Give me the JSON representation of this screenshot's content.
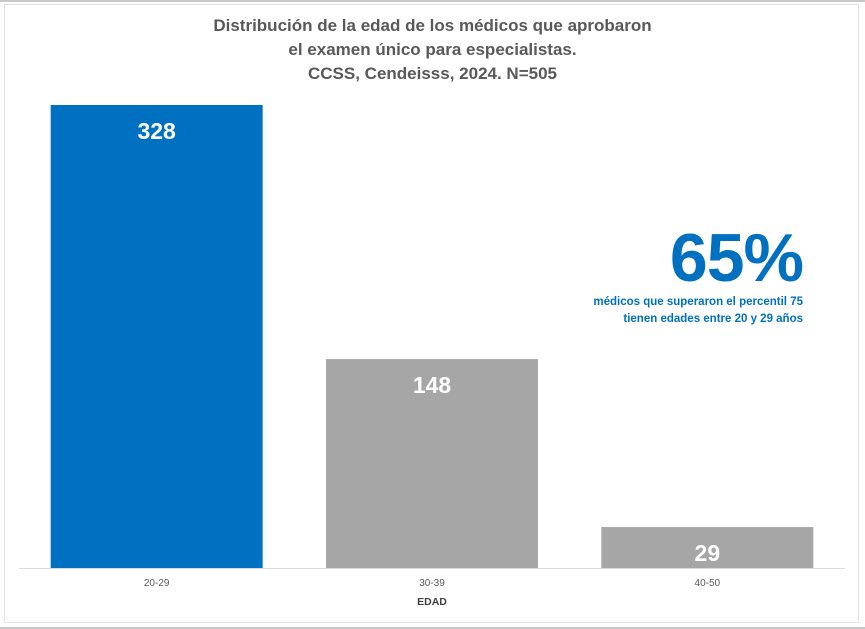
{
  "chart_data": {
    "type": "bar",
    "title": [
      "Distribución de la edad de los médicos que aprobaron",
      "el examen único para especialistas.",
      "CCSS, Cendeisss, 2024. N=505"
    ],
    "categories": [
      "20-29",
      "30-39",
      "40-50"
    ],
    "values": [
      328,
      148,
      29
    ],
    "data_labels": [
      "328",
      "148",
      "29"
    ],
    "xlabel": "EDAD",
    "ylabel": "",
    "ylim": [
      0,
      328
    ],
    "grid": false,
    "legend": "none",
    "bar_colors": [
      "#0070c0",
      "#a6a6a6",
      "#a6a6a6"
    ],
    "annotation": {
      "value": "65%",
      "lines": [
        "médicos que superaron el percentil 75",
        "tienen edades entre 20 y 29 años"
      ],
      "color": "#0070c0"
    }
  }
}
